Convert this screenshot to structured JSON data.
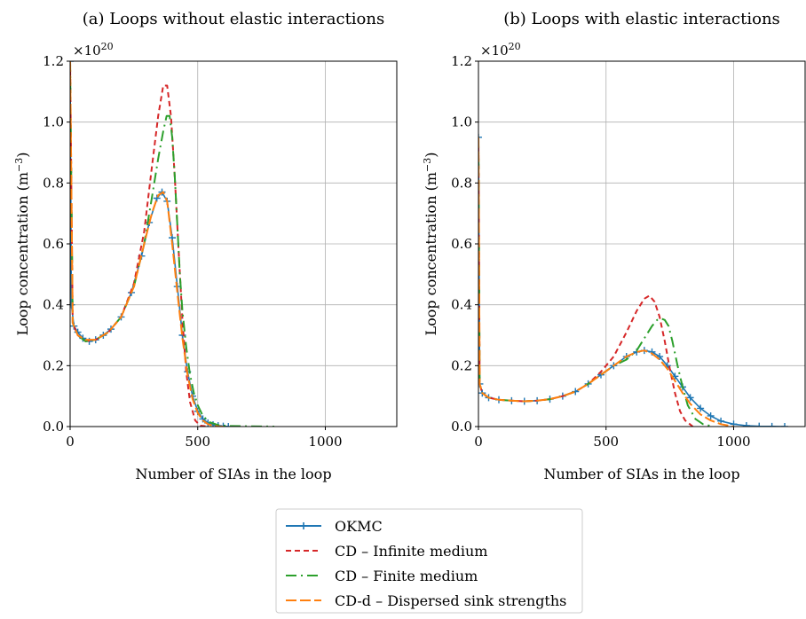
{
  "chart_data": [
    {
      "type": "line",
      "title": "(a) Loops without elastic interactions",
      "xlabel": "Number of SIAs in the loop",
      "ylabel": "Loop concentration (m",
      "ylabel_exp": "−3",
      "ylabel_close": ")",
      "scale_label": "×10",
      "scale_exp": "20",
      "xlim": [
        0,
        1280
      ],
      "ylim": [
        0,
        1.2
      ],
      "xticks": [
        "0",
        "500",
        "1000"
      ],
      "yticks": [
        "0.0",
        "0.2",
        "0.4",
        "0.6",
        "0.8",
        "1.0",
        "1.2"
      ],
      "grid": true,
      "series": [
        {
          "key": "okmc",
          "x": [
            0,
            5,
            15,
            30,
            50,
            75,
            100,
            130,
            160,
            200,
            240,
            280,
            310,
            340,
            360,
            380,
            400,
            420,
            440,
            460,
            480,
            500,
            520,
            540,
            560,
            580,
            600,
            620
          ],
          "y": [
            1.2,
            0.4,
            0.33,
            0.31,
            0.29,
            0.28,
            0.285,
            0.3,
            0.32,
            0.36,
            0.44,
            0.56,
            0.67,
            0.75,
            0.77,
            0.74,
            0.62,
            0.46,
            0.3,
            0.18,
            0.1,
            0.05,
            0.025,
            0.012,
            0.006,
            0.003,
            0.001,
            0.0
          ]
        },
        {
          "key": "cd_infinite",
          "x": [
            0,
            10,
            30,
            60,
            100,
            150,
            200,
            250,
            290,
            320,
            345,
            365,
            380,
            395,
            410,
            425,
            440,
            455,
            470,
            490,
            510,
            540
          ],
          "y": [
            1.2,
            0.34,
            0.3,
            0.28,
            0.285,
            0.31,
            0.36,
            0.47,
            0.64,
            0.85,
            1.02,
            1.12,
            1.12,
            1.02,
            0.82,
            0.58,
            0.35,
            0.18,
            0.08,
            0.02,
            0.003,
            0.0
          ]
        },
        {
          "key": "cd_finite",
          "x": [
            0,
            10,
            30,
            60,
            100,
            150,
            200,
            250,
            290,
            320,
            345,
            365,
            378,
            390,
            400,
            410,
            420,
            430,
            440,
            455,
            470,
            485,
            500,
            520,
            545,
            580,
            620,
            700,
            800
          ],
          "y": [
            1.2,
            0.34,
            0.3,
            0.28,
            0.285,
            0.31,
            0.36,
            0.46,
            0.6,
            0.75,
            0.88,
            0.97,
            1.02,
            1.02,
            0.95,
            0.82,
            0.66,
            0.5,
            0.38,
            0.26,
            0.17,
            0.11,
            0.07,
            0.035,
            0.015,
            0.005,
            0.002,
            0.001,
            0.0
          ]
        },
        {
          "key": "cdd",
          "x": [
            0,
            10,
            30,
            60,
            100,
            150,
            200,
            250,
            290,
            320,
            345,
            365,
            380,
            400,
            420,
            440,
            460,
            480,
            500,
            520,
            540,
            560,
            580,
            600
          ],
          "y": [
            1.2,
            0.34,
            0.3,
            0.285,
            0.285,
            0.31,
            0.36,
            0.46,
            0.6,
            0.7,
            0.76,
            0.77,
            0.74,
            0.6,
            0.44,
            0.29,
            0.17,
            0.09,
            0.045,
            0.02,
            0.008,
            0.003,
            0.001,
            0.0
          ]
        }
      ]
    },
    {
      "type": "line",
      "title": "(b) Loops with elastic interactions",
      "xlabel": "Number of SIAs in the loop",
      "ylabel": "Loop concentration (m",
      "ylabel_exp": "−3",
      "ylabel_close": ")",
      "scale_label": "×10",
      "scale_exp": "20",
      "xlim": [
        0,
        1280
      ],
      "ylim": [
        0,
        1.2
      ],
      "xticks": [
        "0",
        "500",
        "1000"
      ],
      "yticks": [
        "0.0",
        "0.2",
        "0.4",
        "0.6",
        "0.8",
        "1.0",
        "1.2"
      ],
      "grid": true,
      "series": [
        {
          "key": "okmc",
          "x": [
            0,
            5,
            15,
            40,
            80,
            130,
            180,
            230,
            280,
            330,
            380,
            430,
            480,
            530,
            580,
            620,
            650,
            680,
            710,
            740,
            770,
            800,
            830,
            870,
            910,
            950,
            1000,
            1050,
            1100,
            1150,
            1200
          ],
          "y": [
            0.95,
            0.14,
            0.11,
            0.095,
            0.088,
            0.085,
            0.083,
            0.085,
            0.09,
            0.1,
            0.115,
            0.14,
            0.17,
            0.2,
            0.23,
            0.245,
            0.25,
            0.245,
            0.23,
            0.2,
            0.165,
            0.13,
            0.095,
            0.06,
            0.035,
            0.018,
            0.008,
            0.003,
            0.001,
            0.0005,
            0.0
          ]
        },
        {
          "key": "cd_infinite",
          "x": [
            0,
            5,
            15,
            40,
            80,
            130,
            180,
            230,
            280,
            330,
            380,
            430,
            480,
            530,
            580,
            620,
            650,
            670,
            690,
            710,
            730,
            750,
            770,
            790,
            810,
            840
          ],
          "y": [
            0.95,
            0.14,
            0.11,
            0.095,
            0.088,
            0.085,
            0.083,
            0.085,
            0.09,
            0.1,
            0.115,
            0.14,
            0.18,
            0.23,
            0.31,
            0.38,
            0.42,
            0.43,
            0.41,
            0.36,
            0.28,
            0.19,
            0.11,
            0.05,
            0.02,
            0.0
          ]
        },
        {
          "key": "cd_finite",
          "x": [
            0,
            5,
            15,
            40,
            80,
            130,
            180,
            230,
            280,
            330,
            380,
            430,
            480,
            530,
            580,
            620,
            650,
            680,
            700,
            715,
            730,
            745,
            760,
            780,
            800,
            820,
            850,
            880,
            920
          ],
          "y": [
            0.95,
            0.14,
            0.11,
            0.095,
            0.088,
            0.085,
            0.083,
            0.085,
            0.09,
            0.1,
            0.115,
            0.14,
            0.17,
            0.2,
            0.22,
            0.25,
            0.29,
            0.33,
            0.35,
            0.355,
            0.35,
            0.33,
            0.28,
            0.2,
            0.13,
            0.07,
            0.025,
            0.008,
            0.0
          ]
        },
        {
          "key": "cdd",
          "x": [
            0,
            5,
            15,
            40,
            80,
            130,
            180,
            230,
            280,
            330,
            380,
            430,
            480,
            530,
            580,
            620,
            650,
            680,
            710,
            740,
            770,
            800,
            830,
            870,
            910,
            950,
            1000
          ],
          "y": [
            0.95,
            0.14,
            0.11,
            0.095,
            0.088,
            0.085,
            0.083,
            0.085,
            0.09,
            0.1,
            0.115,
            0.14,
            0.17,
            0.2,
            0.23,
            0.245,
            0.25,
            0.24,
            0.22,
            0.19,
            0.15,
            0.11,
            0.075,
            0.04,
            0.02,
            0.008,
            0.0
          ]
        }
      ]
    }
  ],
  "legend": {
    "placement": "bottom-center",
    "entries": [
      {
        "key": "okmc",
        "label": "OKMC",
        "color": "#1f77b4",
        "style": "solid-plus"
      },
      {
        "key": "cd_infinite",
        "label": "CD – Infinite medium",
        "color": "#d62728",
        "style": "dashed"
      },
      {
        "key": "cd_finite",
        "label": "CD – Finite medium",
        "color": "#2ca02c",
        "style": "dashdot"
      },
      {
        "key": "cdd",
        "label": "CD-d – Dispersed sink strengths",
        "color": "#ff7f0e",
        "style": "longdash"
      }
    ]
  }
}
